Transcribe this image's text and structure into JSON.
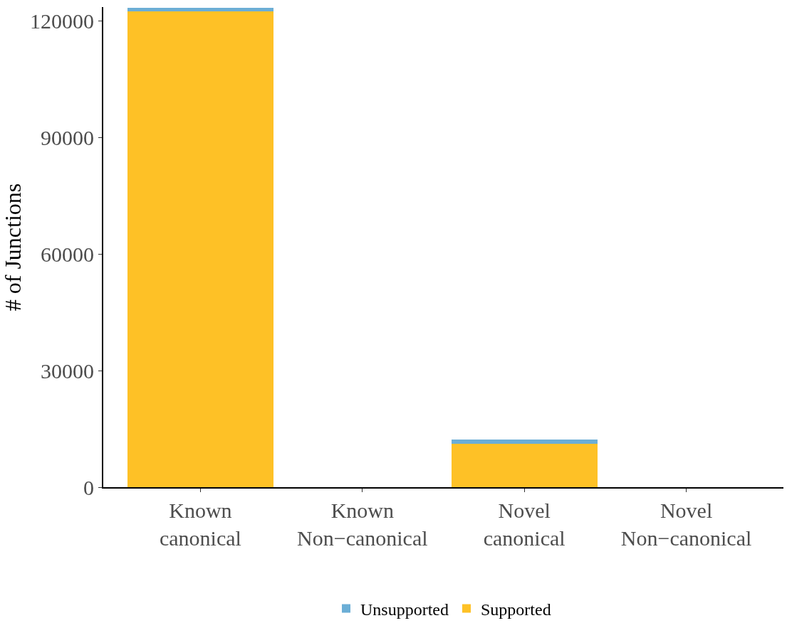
{
  "chart_data": {
    "type": "bar",
    "stacked": true,
    "ylabel": "# of Junctions",
    "categories": [
      "Known\ncanonical",
      "Known\nNon−canonical",
      "Novel\ncanonical",
      "Novel\nNon−canonical"
    ],
    "series": [
      {
        "name": "Supported",
        "color": "#fec126",
        "values": [
          122400,
          0,
          11200,
          0
        ]
      },
      {
        "name": "Unsupported",
        "color": "#6baed6",
        "values": [
          900,
          0,
          1100,
          0
        ]
      }
    ],
    "ylim": [
      0,
      123500
    ],
    "yticks": [
      0,
      30000,
      60000,
      90000,
      120000
    ],
    "legend": "bottom"
  }
}
